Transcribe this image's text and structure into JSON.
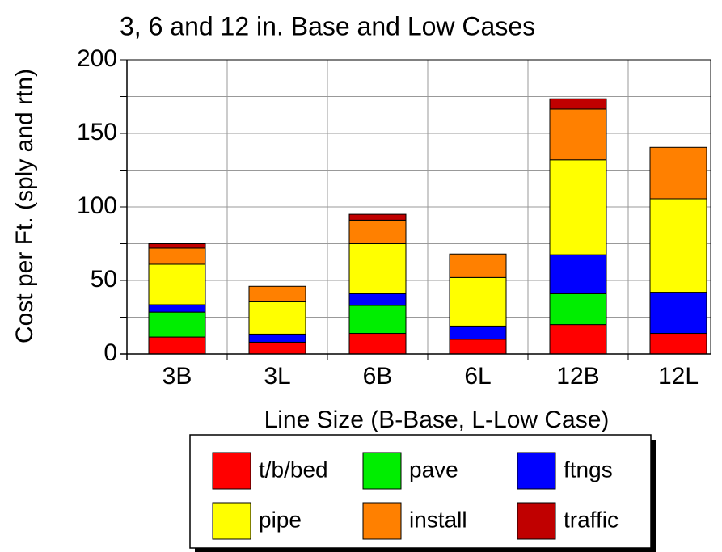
{
  "chart_data": {
    "type": "stacked_bar",
    "title": "3, 6 and 12 in. Base and Low Cases",
    "x_label": "Line Size (B-Base, L-Low Case)",
    "y_label": "Cost per Ft. (sply and rtn)",
    "categories": [
      "3B",
      "3L",
      "6B",
      "6L",
      "12B",
      "12L"
    ],
    "series": [
      {
        "name": "t/b/bed",
        "color": "#ff0000",
        "values": [
          11.5,
          8,
          14,
          10,
          20,
          14
        ]
      },
      {
        "name": "pave",
        "color": "#00ee00",
        "values": [
          17,
          0,
          19,
          0,
          21,
          0
        ]
      },
      {
        "name": "ftngs",
        "color": "#0000ff",
        "values": [
          5,
          5.5,
          8,
          9,
          26.5,
          28
        ]
      },
      {
        "name": "pipe",
        "color": "#ffff00",
        "values": [
          27.5,
          22,
          34,
          33,
          64.5,
          63.5
        ]
      },
      {
        "name": "install",
        "color": "#ff8000",
        "values": [
          11,
          10.5,
          16,
          16,
          34.5,
          35
        ]
      },
      {
        "name": "traffic",
        "color": "#c00000",
        "values": [
          3,
          0,
          4,
          0,
          7,
          0
        ]
      }
    ],
    "ylim": [
      0,
      200
    ],
    "yticks": [
      0,
      50,
      100,
      150,
      200
    ],
    "minor_yticks": [
      25,
      75,
      125,
      175
    ],
    "grid": true,
    "legend": "bottom"
  }
}
